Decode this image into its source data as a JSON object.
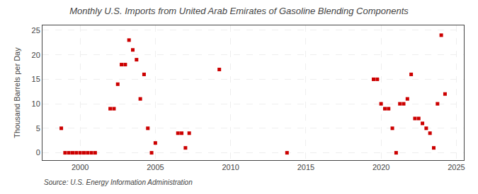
{
  "chart_data": {
    "type": "scatter",
    "title": "Monthly U.S. Imports from United Arab Emirates of Gasoline Blending Components",
    "ylabel": "Thousand Barrels per Day",
    "annotations": [
      "Source: U.S. Energy Information Administration"
    ],
    "x": [
      1998.75,
      1999.0,
      1999.25,
      1999.5,
      1999.75,
      2000.0,
      2000.25,
      2000.5,
      2000.75,
      2001.0,
      2002.0,
      2002.25,
      2002.5,
      2002.75,
      2003.0,
      2003.25,
      2003.5,
      2003.75,
      2004.0,
      2004.25,
      2004.5,
      2004.75,
      2005.0,
      2006.5,
      2006.75,
      2007.0,
      2007.25,
      2009.25,
      2013.75,
      2019.5,
      2019.75,
      2020.0,
      2020.25,
      2020.5,
      2020.75,
      2021.0,
      2021.25,
      2021.5,
      2021.75,
      2022.0,
      2022.25,
      2022.5,
      2022.75,
      2023.0,
      2023.25,
      2023.5,
      2023.75,
      2024.0,
      2024.25
    ],
    "values": [
      5,
      0,
      0,
      0,
      0,
      0,
      0,
      0,
      0,
      0,
      9,
      9,
      14,
      18,
      18,
      23,
      21,
      19,
      11,
      16,
      5,
      0,
      2,
      4,
      4,
      1,
      4,
      17,
      0,
      15,
      15,
      10,
      9,
      9,
      5,
      0,
      10,
      10,
      11,
      16,
      7,
      7,
      6,
      5,
      4,
      1,
      10,
      24,
      12
    ],
    "color": "#cc0000",
    "marker": "square",
    "xlim": [
      1997.5,
      2025.5
    ],
    "ylim": [
      -1.5,
      26
    ],
    "xticks": [
      2000,
      2005,
      2010,
      2015,
      2020,
      2025
    ],
    "yticks": [
      0,
      5,
      10,
      15,
      20,
      25
    ],
    "grid": true
  }
}
